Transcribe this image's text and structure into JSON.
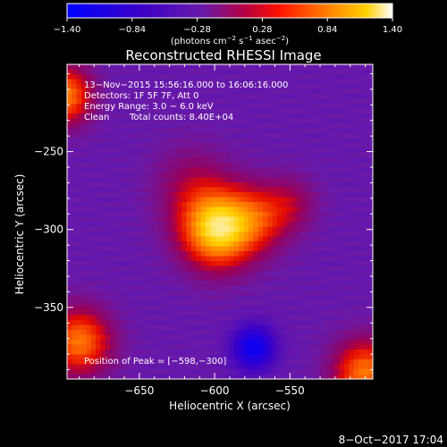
{
  "chart_data": {
    "type": "heatmap",
    "title": "Reconstructed RHESSI Image",
    "xlabel": "Heliocentric X (arcsec)",
    "ylabel": "Heliocentric Y (arcsec)",
    "xlim": [
      -698,
      -495
    ],
    "ylim": [
      -396,
      -194
    ],
    "x_ticks": [
      -650,
      -600,
      -550
    ],
    "x_tick_labels": [
      "−650",
      "−600",
      "−550"
    ],
    "y_ticks": [
      -250,
      -300,
      -350
    ],
    "y_tick_labels": [
      "−250",
      "−300",
      "−350"
    ],
    "colorbar": {
      "range": [
        -1.4,
        1.4
      ],
      "ticks": [
        -1.4,
        -0.84,
        -0.28,
        0.28,
        0.84,
        1.4
      ],
      "tick_labels": [
        "−1.40",
        "−0.84",
        "−0.28",
        "0.28",
        "0.84",
        "1.40"
      ],
      "unit_prefix": "(photons cm",
      "unit_exp1": "−2",
      "unit_mid": " s",
      "unit_exp2": "−1",
      "unit_mid2": " asec",
      "unit_exp3": "−2",
      "unit_suffix": ")"
    },
    "annotations": {
      "time_range": "13−Nov−2015 15:56:16.000 to 16:06:16.000",
      "detectors": "Detectors: 1F 5F 7F, Att 0",
      "energy_range": "Energy Range: 3.0 − 6.0 keV",
      "clean_label": "Clean",
      "total_counts": "Total counts: 8.40E+04",
      "peak_position": "Position of Peak = [−598,−300]"
    },
    "peak": {
      "x": -598,
      "y": -300
    },
    "sources": [
      {
        "x": -598,
        "y": -300,
        "amplitude": 1.45,
        "sigma": 17
      },
      {
        "x": -570,
        "y": -292,
        "amplitude": 0.6,
        "sigma": 15
      },
      {
        "x": -615,
        "y": -272,
        "amplitude": 0.35,
        "sigma": 18
      },
      {
        "x": -548,
        "y": -283,
        "amplitude": 0.32,
        "sigma": 12
      },
      {
        "x": -700,
        "y": -214,
        "amplitude": 1.05,
        "sigma": 13
      },
      {
        "x": -690,
        "y": -372,
        "amplitude": 1.0,
        "sigma": 15
      },
      {
        "x": -500,
        "y": -392,
        "amplitude": 1.0,
        "sigma": 15
      },
      {
        "x": -574,
        "y": -376,
        "amplitude": -0.9,
        "sigma": 10
      }
    ],
    "background": -0.38
  },
  "footer": {
    "date": "8−Oct−2017 17:04"
  }
}
